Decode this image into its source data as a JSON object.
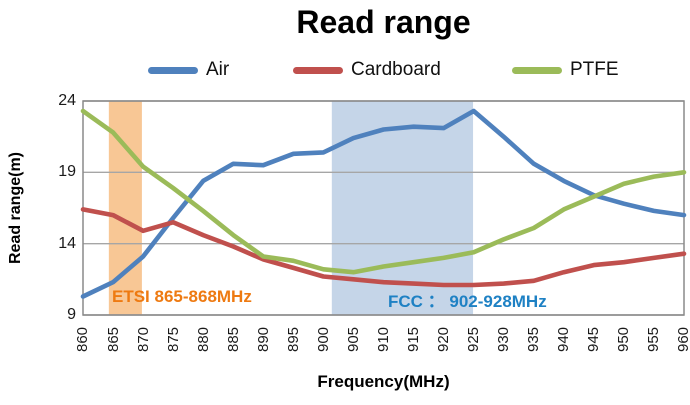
{
  "chart_data": {
    "type": "line",
    "title": "Read range",
    "xlabel": "Frequency(MHz)",
    "ylabel": "Read range(m)",
    "x_categories": [
      860,
      865,
      870,
      875,
      880,
      885,
      890,
      895,
      900,
      905,
      910,
      915,
      920,
      925,
      930,
      935,
      940,
      945,
      950,
      955,
      960
    ],
    "xlim": [
      860,
      960
    ],
    "ylim": [
      9,
      24
    ],
    "yticks": [
      9,
      14,
      19,
      24
    ],
    "grid": true,
    "legend_position": "top",
    "gridline_color": "#A6A6A6",
    "border_color": "#8A8A8A",
    "series": [
      {
        "name": "Air",
        "color": "#4F81BD",
        "values": [
          10.3,
          11.3,
          13.1,
          15.8,
          18.4,
          19.6,
          19.5,
          20.3,
          20.4,
          21.4,
          22.0,
          22.2,
          22.1,
          23.3,
          21.5,
          19.6,
          18.4,
          17.4,
          16.8,
          16.3,
          16.0
        ]
      },
      {
        "name": "Cardboard",
        "color": "#C0504D",
        "values": [
          16.4,
          16.0,
          14.9,
          15.5,
          14.6,
          13.8,
          12.9,
          12.3,
          11.7,
          11.5,
          11.3,
          11.2,
          11.1,
          11.1,
          11.2,
          11.4,
          12.0,
          12.5,
          12.7,
          13.0,
          13.3
        ]
      },
      {
        "name": "PTFE",
        "color": "#9BBB59",
        "values": [
          23.3,
          21.8,
          19.4,
          17.9,
          16.3,
          14.6,
          13.1,
          12.8,
          12.2,
          12.0,
          12.4,
          12.7,
          13.0,
          13.4,
          14.3,
          15.1,
          16.4,
          17.3,
          18.2,
          18.7,
          19.0
        ]
      }
    ],
    "bands": [
      {
        "label": "ETSI 865-868MHz",
        "range": "865-868 MHz",
        "x_from": 864.3,
        "x_to": 869.8,
        "fill": "#F8C795",
        "label_color": "#EE7A11"
      },
      {
        "label": "FCC ： 902-928MHz",
        "range": "902-928 MHz",
        "x_from": 901.4,
        "x_to": 924.9,
        "fill": "#C5D5E8",
        "label_color": "#1E81C4"
      }
    ]
  }
}
